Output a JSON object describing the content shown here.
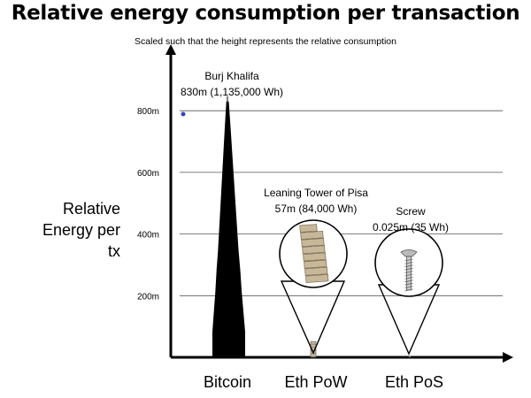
{
  "chart_data": {
    "type": "bar",
    "title": "Relative energy consumption per transaction",
    "subtitle": "Scaled such that the height represents the relative consumption",
    "ylabel": "Relative Energy per tx",
    "ylabel_lines": [
      "Relative",
      "Energy per tx"
    ],
    "yticks": [
      "200m",
      "400m",
      "600m",
      "800m"
    ],
    "ylim": [
      0,
      800
    ],
    "grid": true,
    "categories": [
      "Bitcoin",
      "Eth PoW",
      "Eth PoS"
    ],
    "values": [
      830,
      57,
      0.025
    ],
    "annotations": [
      {
        "category": "Bitcoin",
        "line1": "Burj Khalifa",
        "line2": "830m (1,135,000 Wh)"
      },
      {
        "category": "Eth PoW",
        "line1": "Leaning Tower of Pisa",
        "line2": "57m (84,000 Wh)"
      },
      {
        "category": "Eth PoS",
        "line1": "Screw",
        "line2": "0.025m (35 Wh)"
      }
    ],
    "colors": {
      "axis": "#000000",
      "grid": "#555555",
      "marker": "#3344bb",
      "tower": "#c8b89a"
    }
  }
}
